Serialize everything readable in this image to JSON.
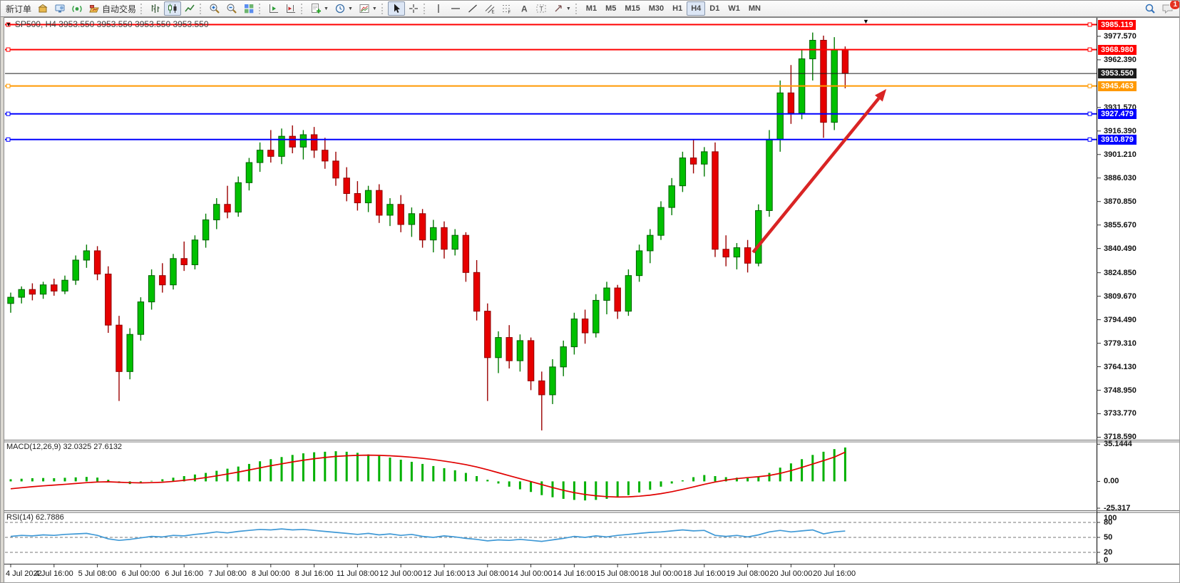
{
  "toolbar": {
    "new_order": "新订单",
    "auto_trading": "自动交易",
    "timeframes": [
      "M1",
      "M5",
      "M15",
      "M30",
      "H1",
      "H4",
      "D1",
      "W1",
      "MN"
    ],
    "active_timeframe": "H4",
    "notification_badge": "1"
  },
  "chart": {
    "title": "SP500, H4  3953.550 3953.550 3953.550 3953.550",
    "macd_label": "MACD(12,26,9) 32.0325 27.6132",
    "rsi_label": "RSI(14) 62.7886"
  },
  "chart_data": {
    "type": "candlestick",
    "symbol": "SP500",
    "timeframe": "H4",
    "current_price": 3953.55,
    "ylim": [
      3716.5,
      3989.5
    ],
    "price_ticks": [
      {
        "value": 3977.57,
        "label": "3977.570"
      },
      {
        "value": 3962.39,
        "label": "3962.390"
      },
      {
        "value": 3931.57,
        "label": "3931.570"
      },
      {
        "value": 3916.39,
        "label": "3916.390"
      },
      {
        "value": 3901.21,
        "label": "3901.210"
      },
      {
        "value": 3886.03,
        "label": "3886.030"
      },
      {
        "value": 3870.85,
        "label": "3870.850"
      },
      {
        "value": 3855.67,
        "label": "3855.670"
      },
      {
        "value": 3840.49,
        "label": "3840.490"
      },
      {
        "value": 3824.85,
        "label": "3824.850"
      },
      {
        "value": 3809.67,
        "label": "3809.670"
      },
      {
        "value": 3794.49,
        "label": "3794.490"
      },
      {
        "value": 3779.31,
        "label": "3779.310"
      },
      {
        "value": 3764.13,
        "label": "3764.130"
      },
      {
        "value": 3748.95,
        "label": "3748.950"
      },
      {
        "value": 3733.77,
        "label": "3733.770"
      },
      {
        "value": 3718.59,
        "label": "3718.590"
      }
    ],
    "hlines": [
      {
        "value": 3985.119,
        "label": "3985.119",
        "color": "#ff0000",
        "width": 2,
        "markers": true
      },
      {
        "value": 3968.98,
        "label": "3968.980",
        "color": "#ff0000",
        "width": 2,
        "markers": true
      },
      {
        "value": 3953.55,
        "label": "3953.550",
        "color": "#1b1b1b",
        "width": 1,
        "markers": false
      },
      {
        "value": 3945.463,
        "label": "3945.463",
        "color": "#ff9900",
        "width": 2,
        "markers": true
      },
      {
        "value": 3927.479,
        "label": "3927.479",
        "color": "#0000ff",
        "width": 2,
        "markers": true
      },
      {
        "value": 3910.879,
        "label": "3910.879",
        "color": "#0000ff",
        "width": 2,
        "markers": true
      }
    ],
    "candles": [
      [
        3805,
        3812,
        3799,
        3809
      ],
      [
        3809,
        3816,
        3805,
        3814
      ],
      [
        3814,
        3818,
        3807,
        3811
      ],
      [
        3811,
        3819,
        3808,
        3817
      ],
      [
        3817,
        3821,
        3810,
        3813
      ],
      [
        3813,
        3823,
        3811,
        3820
      ],
      [
        3820,
        3836,
        3817,
        3833
      ],
      [
        3833,
        3843,
        3828,
        3839
      ],
      [
        3839,
        3842,
        3820,
        3824
      ],
      [
        3824,
        3829,
        3786,
        3791
      ],
      [
        3791,
        3797,
        3742,
        3761
      ],
      [
        3761,
        3789,
        3756,
        3785
      ],
      [
        3785,
        3809,
        3781,
        3806
      ],
      [
        3806,
        3827,
        3801,
        3823
      ],
      [
        3823,
        3831,
        3812,
        3817
      ],
      [
        3817,
        3837,
        3814,
        3834
      ],
      [
        3834,
        3845,
        3826,
        3830
      ],
      [
        3830,
        3849,
        3827,
        3846
      ],
      [
        3846,
        3863,
        3841,
        3859
      ],
      [
        3859,
        3873,
        3853,
        3869
      ],
      [
        3869,
        3881,
        3860,
        3864
      ],
      [
        3864,
        3887,
        3861,
        3883
      ],
      [
        3883,
        3899,
        3878,
        3896
      ],
      [
        3896,
        3909,
        3890,
        3904
      ],
      [
        3904,
        3917,
        3896,
        3900
      ],
      [
        3900,
        3918,
        3895,
        3913
      ],
      [
        3913,
        3920,
        3902,
        3906
      ],
      [
        3906,
        3917,
        3898,
        3914
      ],
      [
        3914,
        3919,
        3899,
        3904
      ],
      [
        3904,
        3912,
        3892,
        3897
      ],
      [
        3897,
        3903,
        3881,
        3886
      ],
      [
        3886,
        3893,
        3871,
        3876
      ],
      [
        3876,
        3884,
        3865,
        3870
      ],
      [
        3870,
        3881,
        3864,
        3878
      ],
      [
        3878,
        3882,
        3857,
        3862
      ],
      [
        3862,
        3873,
        3855,
        3869
      ],
      [
        3869,
        3875,
        3851,
        3856
      ],
      [
        3856,
        3867,
        3848,
        3863
      ],
      [
        3863,
        3866,
        3841,
        3846
      ],
      [
        3846,
        3859,
        3838,
        3854
      ],
      [
        3854,
        3858,
        3834,
        3840
      ],
      [
        3840,
        3853,
        3836,
        3849
      ],
      [
        3849,
        3851,
        3819,
        3825
      ],
      [
        3825,
        3833,
        3794,
        3800
      ],
      [
        3800,
        3805,
        3742,
        3770
      ],
      [
        3770,
        3787,
        3760,
        3783
      ],
      [
        3783,
        3791,
        3763,
        3768
      ],
      [
        3768,
        3785,
        3761,
        3781
      ],
      [
        3781,
        3783,
        3749,
        3755
      ],
      [
        3755,
        3761,
        3723,
        3746
      ],
      [
        3746,
        3769,
        3740,
        3764
      ],
      [
        3764,
        3781,
        3758,
        3777
      ],
      [
        3777,
        3799,
        3772,
        3795
      ],
      [
        3795,
        3801,
        3779,
        3786
      ],
      [
        3786,
        3811,
        3783,
        3807
      ],
      [
        3807,
        3819,
        3798,
        3815
      ],
      [
        3815,
        3817,
        3795,
        3800
      ],
      [
        3800,
        3827,
        3797,
        3823
      ],
      [
        3823,
        3843,
        3819,
        3839
      ],
      [
        3839,
        3853,
        3831,
        3849
      ],
      [
        3849,
        3871,
        3846,
        3867
      ],
      [
        3867,
        3886,
        3862,
        3881
      ],
      [
        3881,
        3903,
        3877,
        3899
      ],
      [
        3899,
        3911,
        3889,
        3895
      ],
      [
        3895,
        3906,
        3887,
        3903
      ],
      [
        3903,
        3909,
        3835,
        3840
      ],
      [
        3840,
        3849,
        3829,
        3835
      ],
      [
        3835,
        3844,
        3827,
        3841
      ],
      [
        3841,
        3846,
        3825,
        3831
      ],
      [
        3831,
        3869,
        3829,
        3865
      ],
      [
        3865,
        3917,
        3861,
        3911
      ],
      [
        3911,
        3949,
        3903,
        3941
      ],
      [
        3941,
        3959,
        3921,
        3928
      ],
      [
        3928,
        3969,
        3924,
        3963
      ],
      [
        3963,
        3980,
        3949,
        3975
      ],
      [
        3975,
        3978,
        3912,
        3922
      ],
      [
        3922,
        3977,
        3917,
        3969
      ],
      [
        3969,
        3971,
        3944,
        3953.55
      ]
    ],
    "time_labels": [
      {
        "bar": 0,
        "text": "4 Jul 2022"
      },
      {
        "bar": 4,
        "text": "4 Jul 16:00"
      },
      {
        "bar": 8,
        "text": "5 Jul 08:00"
      },
      {
        "bar": 12,
        "text": "6 Jul 00:00"
      },
      {
        "bar": 16,
        "text": "6 Jul 16:00"
      },
      {
        "bar": 20,
        "text": "7 Jul 08:00"
      },
      {
        "bar": 24,
        "text": "8 Jul 00:00"
      },
      {
        "bar": 28,
        "text": "8 Jul 16:00"
      },
      {
        "bar": 32,
        "text": "11 Jul 08:00"
      },
      {
        "bar": 36,
        "text": "12 Jul 00:00"
      },
      {
        "bar": 40,
        "text": "12 Jul 16:00"
      },
      {
        "bar": 44,
        "text": "13 Jul 08:00"
      },
      {
        "bar": 48,
        "text": "14 Jul 00:00"
      },
      {
        "bar": 52,
        "text": "14 Jul 16:00"
      },
      {
        "bar": 56,
        "text": "15 Jul 08:00"
      },
      {
        "bar": 60,
        "text": "18 Jul 00:00"
      },
      {
        "bar": 64,
        "text": "18 Jul 16:00"
      },
      {
        "bar": 68,
        "text": "19 Jul 08:00"
      },
      {
        "bar": 72,
        "text": "20 Jul 00:00"
      },
      {
        "bar": 76,
        "text": "20 Jul 16:00"
      }
    ],
    "trend_arrow": {
      "from": {
        "bar": 68.5,
        "price": 3838
      },
      "to": {
        "bar": 80.8,
        "price": 3943.5
      },
      "color": "#d92424"
    },
    "macd": {
      "params": "12,26,9",
      "main_value": 32.0325,
      "signal_value": 27.6132,
      "ylim": [
        -28,
        38
      ],
      "axis_ticks": [
        {
          "value": 35.1444,
          "label": "35.1444"
        },
        {
          "value": 0,
          "label": "0.00"
        },
        {
          "value": -25.317,
          "label": "-25.317"
        }
      ],
      "histogram": [
        2,
        2.5,
        3,
        3.2,
        3,
        3.4,
        3.8,
        4.2,
        3.6,
        1.5,
        -1.5,
        -2.5,
        -1,
        0.5,
        2,
        3.5,
        5,
        6.5,
        8,
        10,
        12,
        14,
        16.5,
        19,
        21,
        23,
        25,
        26.5,
        27.5,
        28,
        28.5,
        28,
        27,
        25.5,
        24,
        22.5,
        20.5,
        18.5,
        16.5,
        14.5,
        12.5,
        10.5,
        8,
        5,
        1.5,
        -2,
        -5,
        -7.5,
        -10,
        -13,
        -15,
        -16.5,
        -17.5,
        -18,
        -17.5,
        -16.5,
        -15,
        -13,
        -10.5,
        -8,
        -5,
        -2,
        1,
        4,
        6,
        5,
        4,
        3.5,
        3,
        4.5,
        8,
        13,
        17,
        21,
        25,
        28,
        30.5,
        32.03
      ],
      "signal": [
        -7,
        -6,
        -5,
        -4.2,
        -3.5,
        -2.8,
        -2,
        -1.2,
        -0.6,
        -0.4,
        -0.8,
        -1.2,
        -1.4,
        -1.2,
        -0.8,
        0,
        1,
        2.2,
        3.6,
        5.2,
        7,
        8.8,
        10.8,
        12.8,
        14.8,
        16.6,
        18.4,
        20,
        21.4,
        22.6,
        23.6,
        24.2,
        24.6,
        24.8,
        24.6,
        24.2,
        23.6,
        22.8,
        21.8,
        20.6,
        19.2,
        17.6,
        15.8,
        13.6,
        11,
        8.2,
        5.4,
        2.6,
        -0.2,
        -3,
        -5.8,
        -8.4,
        -10.6,
        -12.4,
        -13.6,
        -14.4,
        -14.8,
        -14.6,
        -14,
        -13,
        -11.6,
        -9.8,
        -7.6,
        -5.2,
        -2.8,
        -0.6,
        1.2,
        2.6,
        3.6,
        4.4,
        5.6,
        7.6,
        10.2,
        13.2,
        16.4,
        19.6,
        23,
        27.61
      ]
    },
    "rsi": {
      "period": 14,
      "value": 62.7886,
      "levels": [
        80,
        50,
        20
      ],
      "axis_labels": [
        {
          "value": 100,
          "label": "100"
        },
        {
          "value": 80,
          "label": "80"
        },
        {
          "value": 50,
          "label": "50"
        },
        {
          "value": 20,
          "label": "20"
        },
        {
          "value": 0,
          "label": "0"
        }
      ],
      "values": [
        52,
        54,
        53,
        55,
        54,
        56,
        57,
        58,
        54,
        47,
        44,
        46,
        49,
        52,
        51,
        54,
        53,
        56,
        58,
        61,
        59,
        62,
        64,
        66,
        65,
        67,
        65,
        66,
        64,
        62,
        60,
        58,
        56,
        58,
        55,
        57,
        54,
        56,
        52,
        50,
        53,
        51,
        48,
        46,
        43,
        45,
        44,
        46,
        44,
        42,
        45,
        48,
        52,
        50,
        53,
        51,
        54,
        56,
        58,
        60,
        61,
        63,
        65,
        63,
        64,
        54,
        52,
        54,
        51,
        55,
        61,
        64,
        61,
        63,
        65,
        57,
        61,
        62.79
      ]
    }
  }
}
